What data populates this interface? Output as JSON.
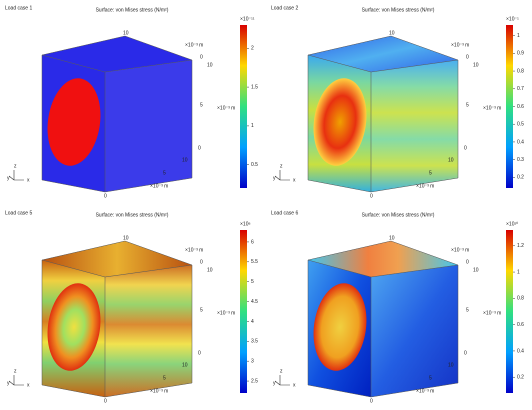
{
  "panels": [
    {
      "label": "Load case 1",
      "title": "Surface: von Mises stress (N/m²)",
      "colorbar": {
        "exponent": "×10⁻¹¹",
        "ticks": [
          "2",
          "1.5",
          "1",
          "0.5"
        ]
      },
      "axis_labels": [
        "10",
        "×10⁻³ m",
        "0",
        "10",
        "5",
        "×10⁻³ m",
        "0",
        "10",
        "5",
        "×10⁻³ m",
        "0"
      ],
      "triad": [
        "y",
        "z",
        "x"
      ]
    },
    {
      "label": "Load case 2",
      "title": "Surface: von Mises stress (N/m²)",
      "colorbar": {
        "exponent": "×10⁻¹",
        "ticks": [
          "1",
          "0.9",
          "0.8",
          "0.7",
          "0.6",
          "0.5",
          "0.4",
          "0.3",
          "0.2"
        ]
      },
      "axis_labels": [
        "10",
        "×10⁻³ m",
        "0",
        "10",
        "5",
        "×10⁻³ m",
        "0",
        "10",
        "5",
        "×10⁻³ m",
        "0"
      ],
      "triad": [
        "y",
        "z",
        "x"
      ]
    },
    {
      "label": "Load case 5",
      "title": "Surface: von Mises stress (N/m²)",
      "colorbar": {
        "exponent": "×10⁶",
        "ticks": [
          "6",
          "5.5",
          "5",
          "4.5",
          "4",
          "3.5",
          "3",
          "2.5"
        ]
      },
      "axis_labels": [
        "10",
        "×10⁻³ m",
        "0",
        "10",
        "5",
        "×10⁻³ m",
        "0",
        "10",
        "5",
        "×10⁻³ m",
        "0"
      ],
      "triad": [
        "y",
        "z",
        "x"
      ]
    },
    {
      "label": "Load case 6",
      "title": "Surface: von Mises stress (N/m²)",
      "colorbar": {
        "exponent": "×10¹⁰",
        "ticks": [
          "1.2",
          "1",
          "0.8",
          "0.6",
          "0.4",
          "0.2"
        ]
      },
      "axis_labels": [
        "10",
        "×10⁻³ m",
        "0",
        "10",
        "5",
        "×10⁻³ m",
        "0",
        "10",
        "5",
        "×10⁻³ m",
        "0"
      ],
      "triad": [
        "y",
        "z",
        "x"
      ]
    }
  ]
}
